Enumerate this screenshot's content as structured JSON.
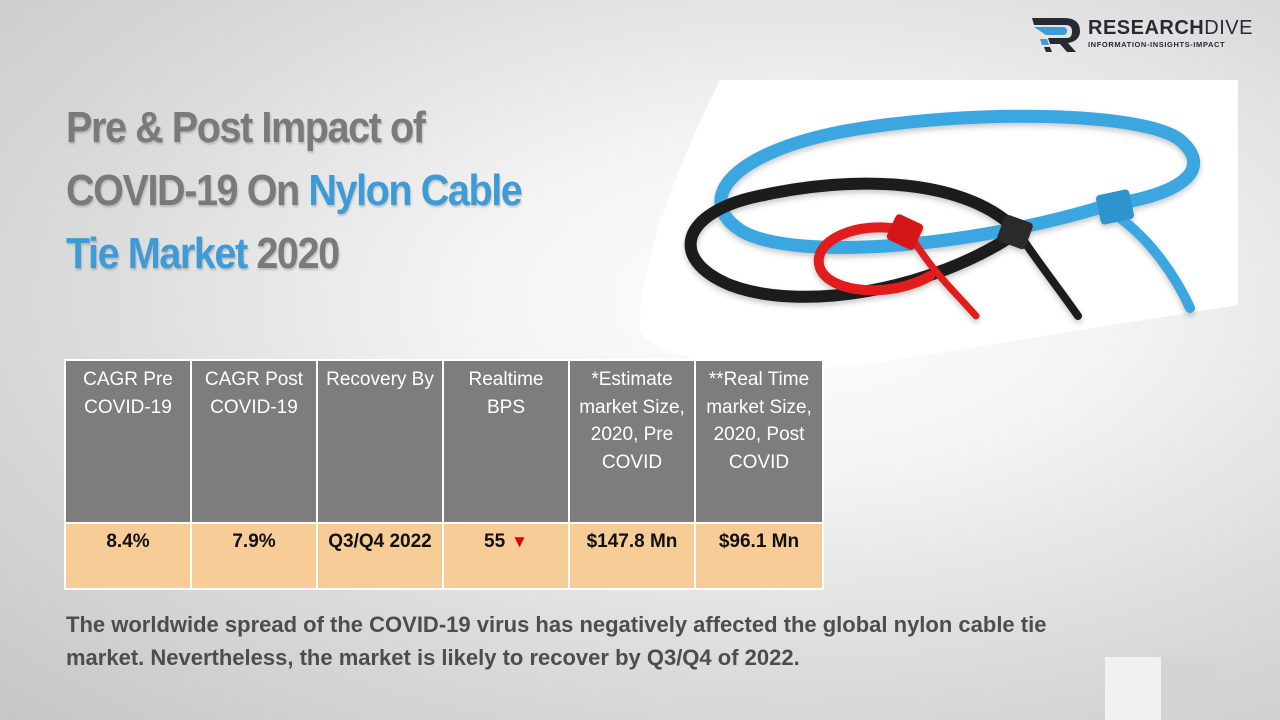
{
  "brand": {
    "name_bold": "RESEARCH",
    "name_light": "DIVE",
    "tagline": "INFORMATION-INSIGHTS-IMPACT",
    "colors": {
      "primary": "#3f9bd6",
      "dark": "#262a33"
    }
  },
  "title": {
    "line1": "Pre & Post Impact of",
    "line2_prefix": "COVID-19 On ",
    "line2_accent": "Nylon Cable",
    "line3_accent": "Tie Market",
    "line3_suffix": " 2020",
    "colors": {
      "gray": "#7a7a7a",
      "accent": "#3f9bd6"
    }
  },
  "table": {
    "headers": [
      "CAGR Pre COVID-19",
      "CAGR Post COVID-19",
      "Recovery By",
      "Realtime BPS",
      "*Estimate market Size, 2020, Pre COVID",
      "**Real Time market Size, 2020, Post COVID"
    ],
    "values": {
      "cagr_pre": "8.4%",
      "cagr_post": "7.9%",
      "recovery": "Q3/Q4 2022",
      "bps": "55",
      "bps_trend_icon": "down-triangle-icon",
      "market_pre": "$147.8 Mn",
      "market_post": "$96.1 Mn"
    },
    "colors": {
      "header_bg": "#7d7d7d",
      "row_bg": "#f7cc97",
      "trend": "#e00000"
    }
  },
  "summary": "The worldwide spread of the COVID-19 virus has negatively affected the global nylon cable tie market. Nevertheless, the market is likely to recover by Q3/Q4 of 2022.",
  "image": {
    "subject": "cable-ties-photo",
    "tie_colors": [
      "#3aa6e0",
      "#1c1c1c",
      "#e01e1e"
    ]
  }
}
